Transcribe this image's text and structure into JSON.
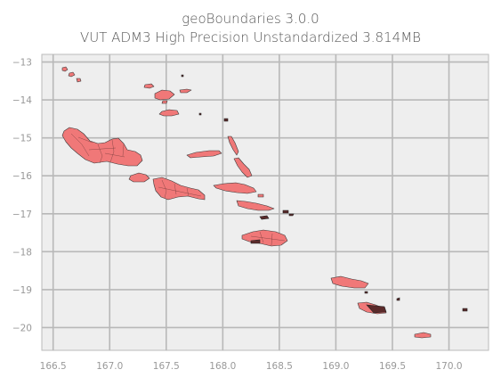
{
  "title": {
    "line1": "geoBoundaries 3.0.0",
    "line2": "VUT ADM3 High Precision Unstandardized 3.814MB"
  },
  "axes": {
    "x_ticks": [
      "166.5",
      "167.0",
      "167.5",
      "168.0",
      "168.5",
      "169.0",
      "169.5",
      "170.0"
    ],
    "y_ticks": [
      "−13",
      "−14",
      "−15",
      "−16",
      "−17",
      "−18",
      "−19",
      "−20"
    ],
    "xlim": [
      166.4,
      170.35
    ],
    "ylim": [
      -20.6,
      -12.8
    ],
    "grid": true
  },
  "colors": {
    "plot_background": "#eeeeee",
    "island_fill": "#f07878",
    "island_edge": "#3a3a3a",
    "grid": "#b8b8b8"
  },
  "map": {
    "country": "VUT",
    "admin_level": "ADM3"
  }
}
